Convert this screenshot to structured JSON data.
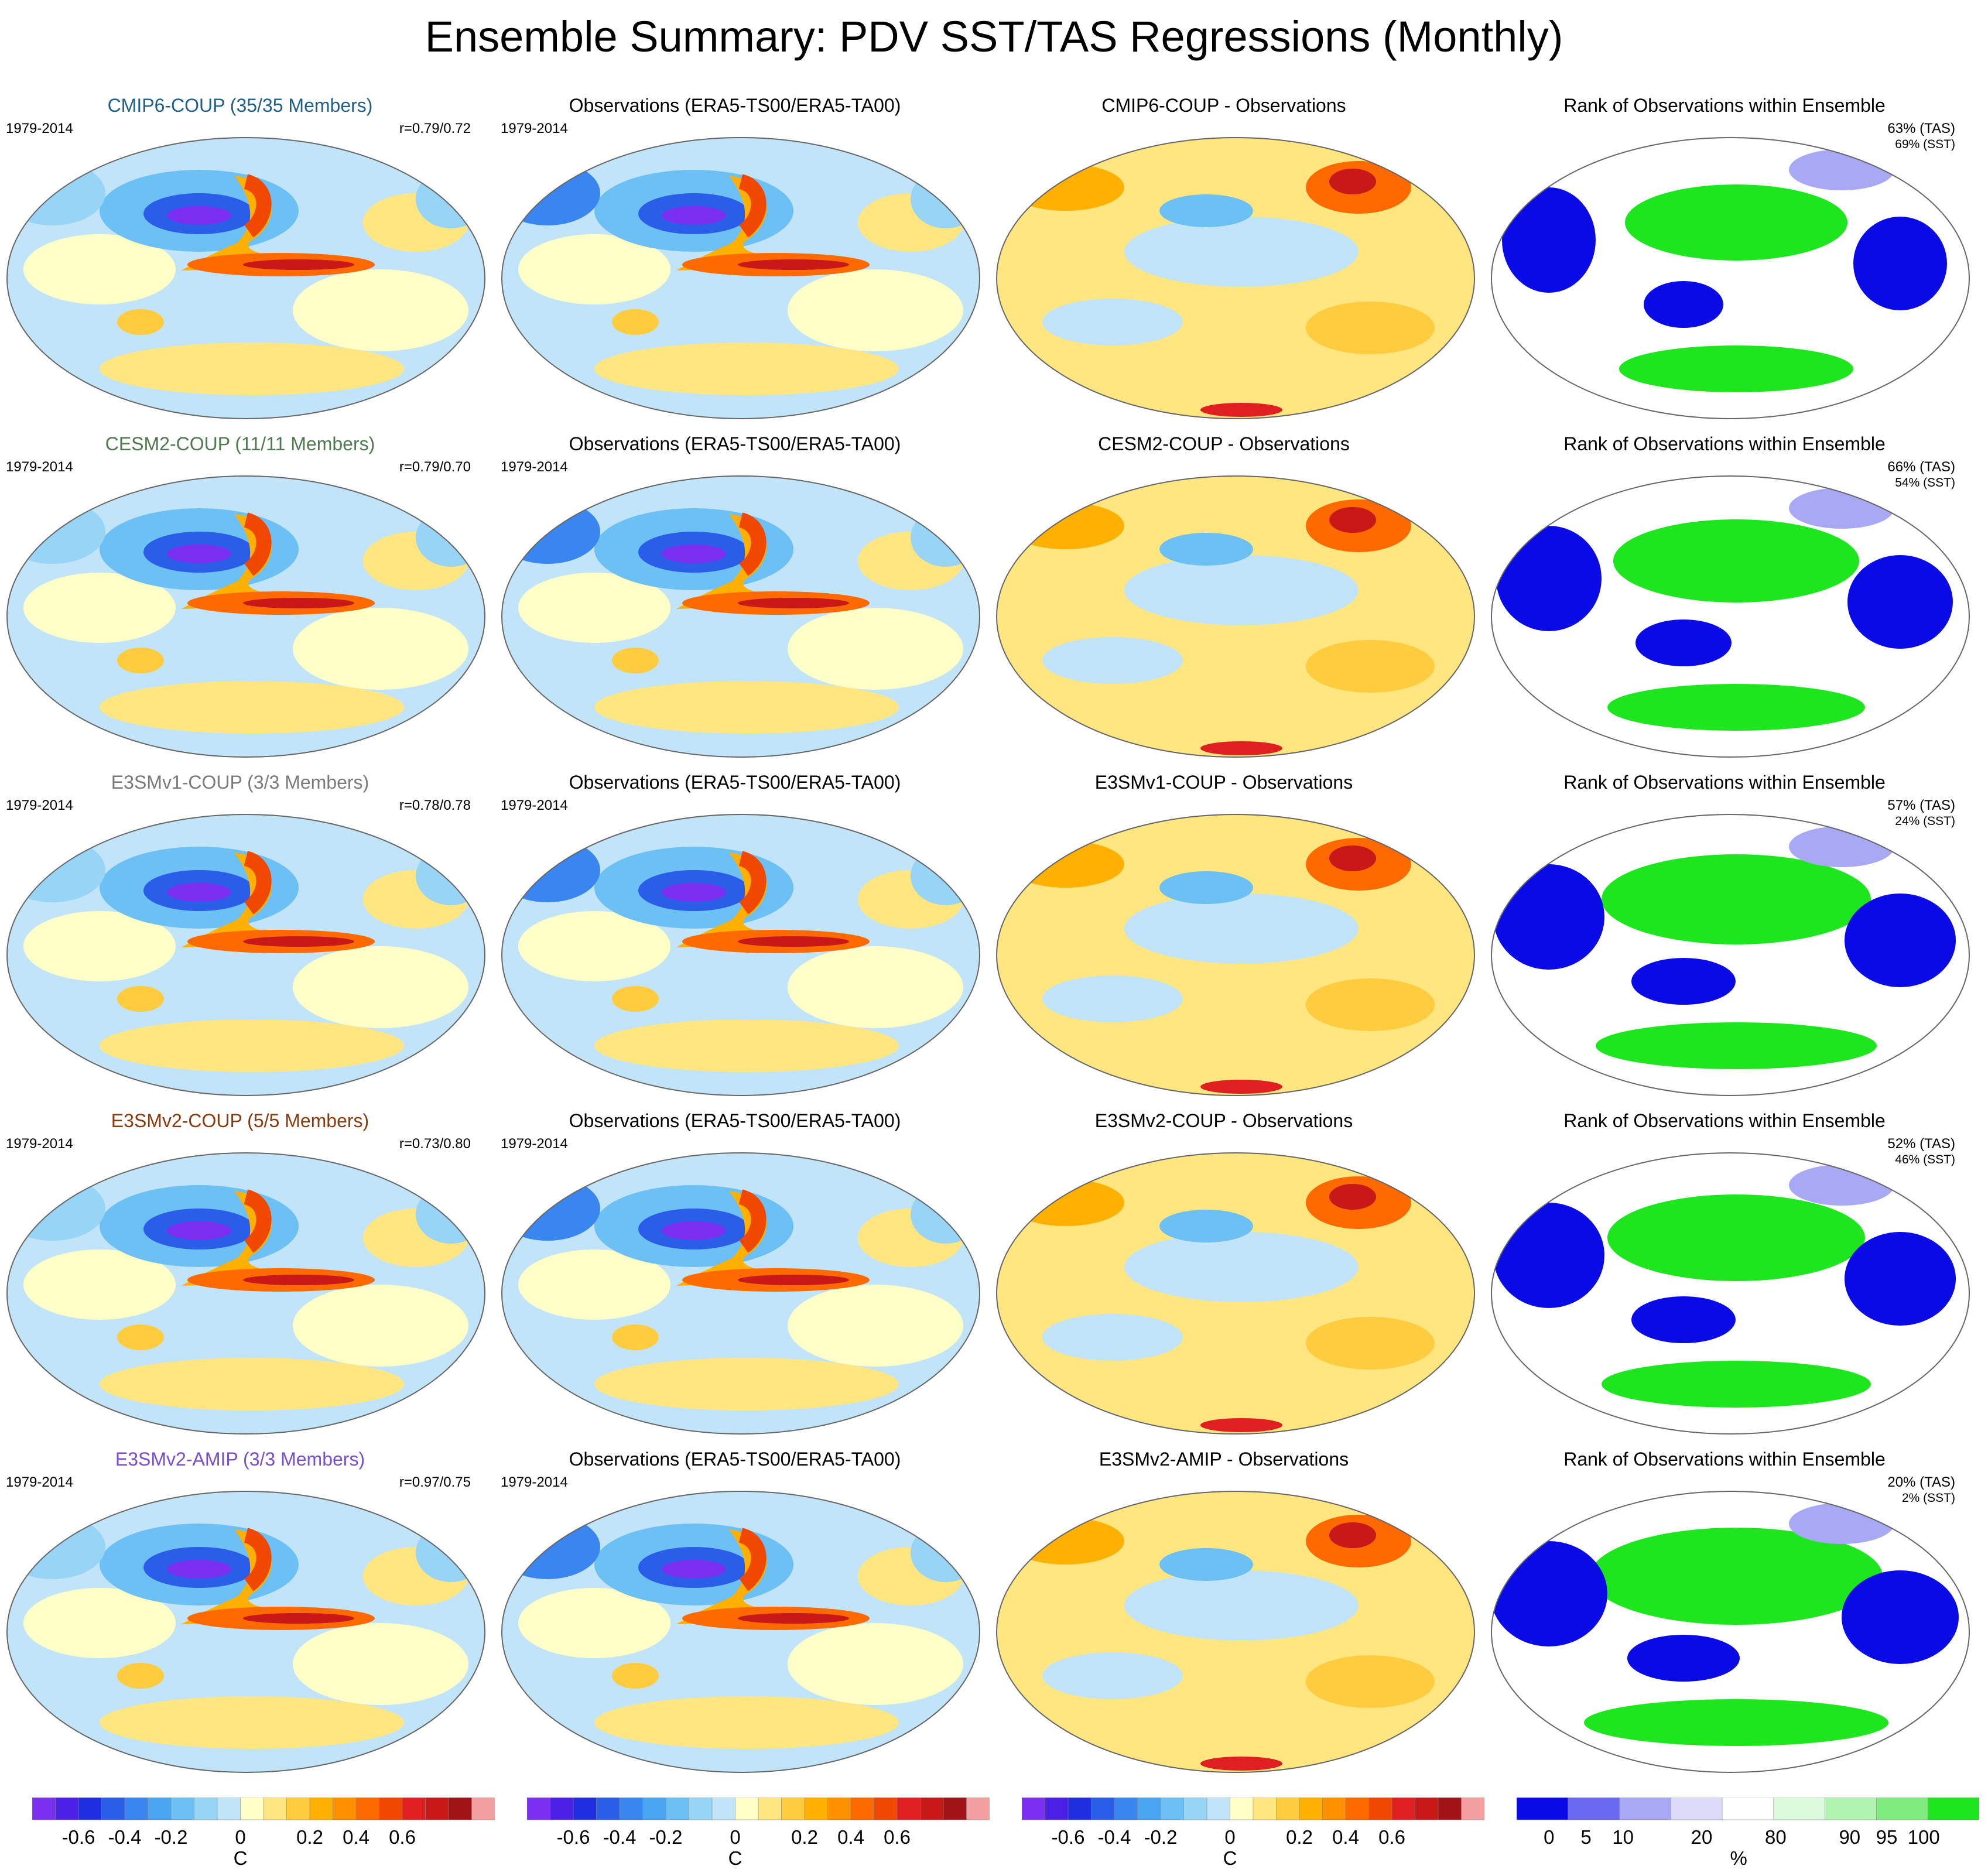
{
  "title": "Ensemble Summary: PDV SST/TAS Regressions (Monthly)",
  "rows": [
    {
      "model_title": "CMIP6-COUP (35/35 Members)",
      "model_color": "#1f5f8b",
      "period": "1979-2014",
      "corr": "r=0.79/0.72",
      "obs_title": "Observations (ERA5-TS00/ERA5-TA00)",
      "obs_period": "1979-2014",
      "diff_title": "CMIP6-COUP - Observations",
      "rank_title": "Rank of Observations within Ensemble",
      "rank_tas": "63% (TAS)",
      "rank_sst": "69% (SST)"
    },
    {
      "model_title": "CESM2-COUP (11/11 Members)",
      "model_color": "#4f7a4f",
      "period": "1979-2014",
      "corr": "r=0.79/0.70",
      "obs_title": "Observations (ERA5-TS00/ERA5-TA00)",
      "obs_period": "1979-2014",
      "diff_title": "CESM2-COUP - Observations",
      "rank_title": "Rank of Observations within Ensemble",
      "rank_tas": "66% (TAS)",
      "rank_sst": "54% (SST)"
    },
    {
      "model_title": "E3SMv1-COUP (3/3 Members)",
      "model_color": "#7a7a7a",
      "period": "1979-2014",
      "corr": "r=0.78/0.78",
      "obs_title": "Observations (ERA5-TS00/ERA5-TA00)",
      "obs_period": "1979-2014",
      "diff_title": "E3SMv1-COUP - Observations",
      "rank_title": "Rank of Observations within Ensemble",
      "rank_tas": "57% (TAS)",
      "rank_sst": "24% (SST)"
    },
    {
      "model_title": "E3SMv2-COUP (5/5 Members)",
      "model_color": "#8b3a0e",
      "period": "1979-2014",
      "corr": "r=0.73/0.80",
      "obs_title": "Observations (ERA5-TS00/ERA5-TA00)",
      "obs_period": "1979-2014",
      "diff_title": "E3SMv2-COUP - Observations",
      "rank_title": "Rank of Observations within Ensemble",
      "rank_tas": "52% (TAS)",
      "rank_sst": "46% (SST)"
    },
    {
      "model_title": "E3SMv2-AMIP (3/3 Members)",
      "model_color": "#7b4fd0",
      "period": "1979-2014",
      "corr": "r=0.97/0.75",
      "obs_title": "Observations (ERA5-TS00/ERA5-TA00)",
      "obs_period": "1979-2014",
      "diff_title": "E3SMv2-AMIP - Observations",
      "rank_title": "Rank of Observations within Ensemble",
      "rank_tas": "20% (TAS)",
      "rank_sst": "2% (SST)"
    }
  ],
  "colorbar_temp": {
    "ticks": [
      "-0.6",
      "-0.4",
      "-0.2",
      "0",
      "0.2",
      "0.4",
      "0.6"
    ],
    "unit": "C",
    "colors": [
      "#7b2ff0",
      "#4b1fe6",
      "#1f2fe0",
      "#2a5ee8",
      "#3a86f0",
      "#4aa6f2",
      "#6cc0f4",
      "#98d4f6",
      "#c2e4f8",
      "#ffffc8",
      "#ffe680",
      "#ffcc40",
      "#ffb000",
      "#ff9000",
      "#ff6a00",
      "#f04800",
      "#e02020",
      "#c81818",
      "#a01418",
      "#f4a0a0"
    ]
  },
  "colorbar_rank": {
    "ticks": [
      "0",
      "5",
      "10",
      "20",
      "80",
      "90",
      "95",
      "100"
    ],
    "unit": "%",
    "colors": [
      "#0a0ae6",
      "#6a6af0",
      "#a8a8f4",
      "#dcdcfa",
      "#ffffff",
      "#dcfadc",
      "#b0f4b0",
      "#80ec80",
      "#1ee61e"
    ]
  }
}
